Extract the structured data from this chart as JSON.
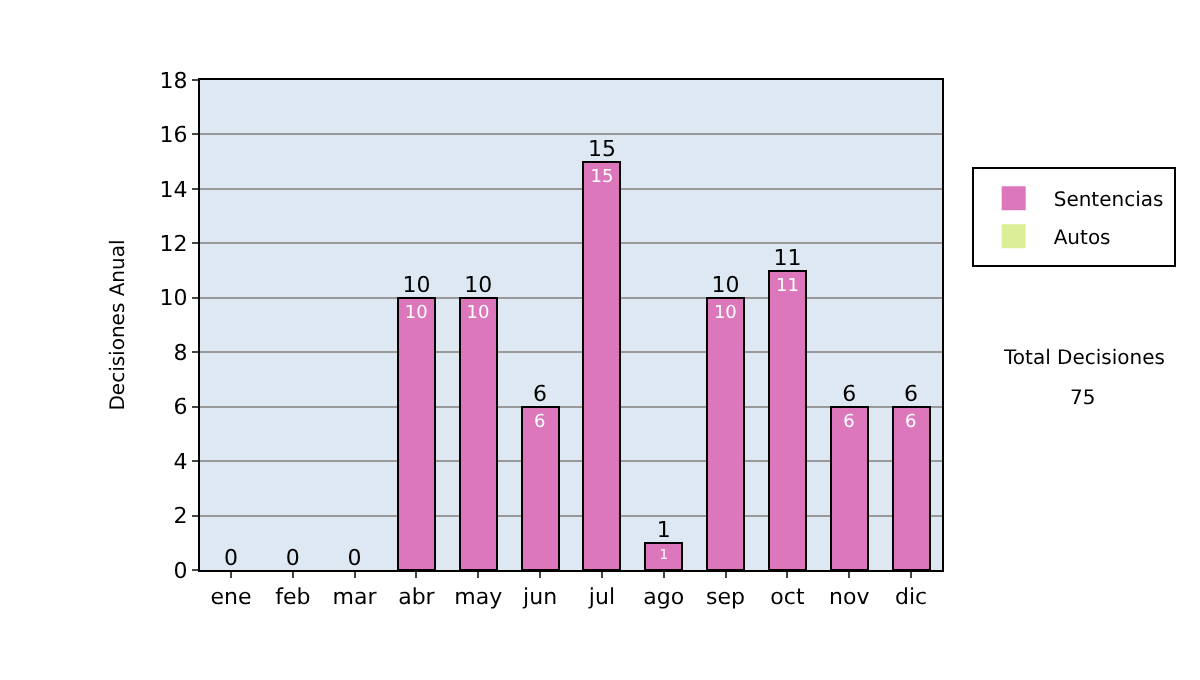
{
  "chart_data": {
    "type": "bar",
    "stacked": true,
    "ylabel": "Decisiones Anual",
    "categories": [
      "ene",
      "feb",
      "mar",
      "abr",
      "may",
      "jun",
      "jul",
      "ago",
      "sep",
      "oct",
      "nov",
      "dic"
    ],
    "series": [
      {
        "name": "Sentencias",
        "color": "#dd77bb",
        "values": [
          0,
          0,
          0,
          10,
          10,
          6,
          15,
          1,
          10,
          11,
          6,
          6
        ],
        "value_labels": [
          null,
          null,
          null,
          "10",
          "10",
          "6",
          "15",
          "1",
          "10",
          "11",
          "6",
          "6"
        ]
      },
      {
        "name": "Autos",
        "color": "#ddee99",
        "values": [
          0,
          0,
          0,
          0,
          0,
          0,
          0,
          0,
          0,
          0,
          0,
          0
        ]
      }
    ],
    "totals": [
      "0",
      "0",
      "0",
      "10",
      "10",
      "6",
      "15",
      "1",
      "10",
      "11",
      "6",
      "6"
    ],
    "ylim": [
      0,
      18
    ],
    "yticks": [
      0,
      2,
      4,
      6,
      8,
      10,
      12,
      14,
      16,
      18
    ],
    "grid": "y",
    "legend": "right",
    "annotations": [
      "Total Decisiones",
      "75"
    ]
  }
}
